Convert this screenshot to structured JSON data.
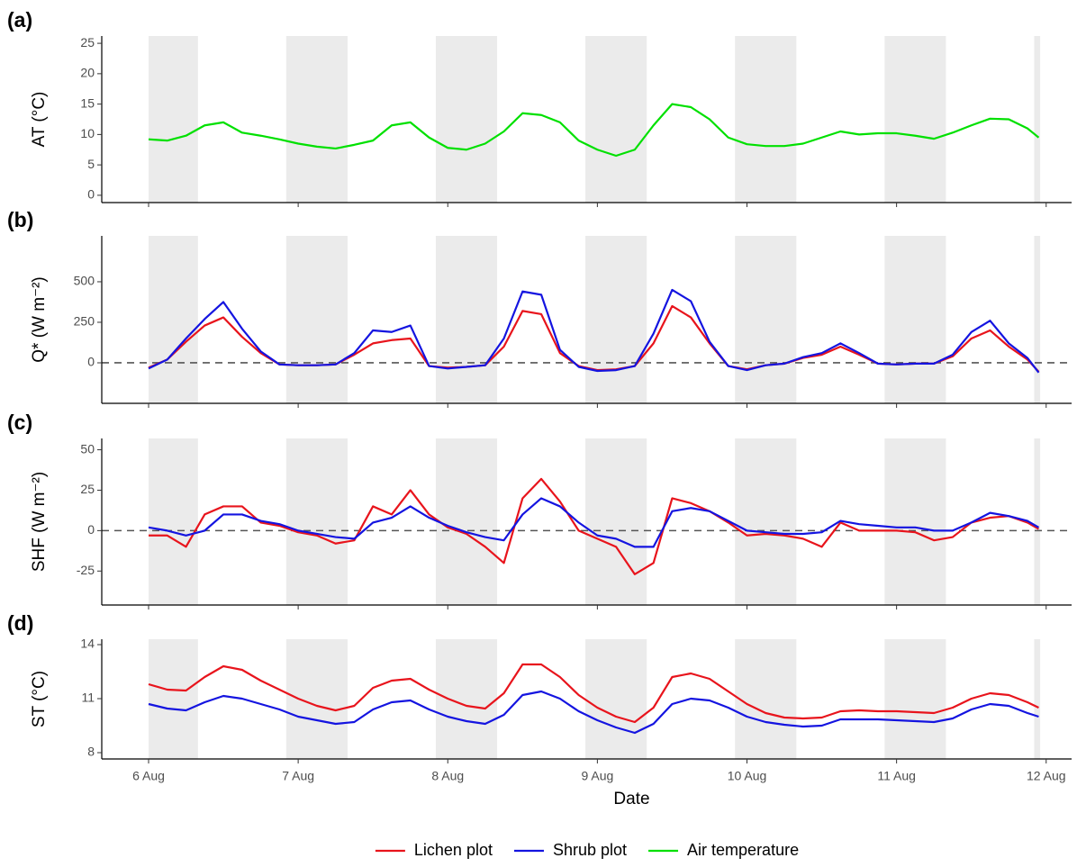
{
  "chart_data": [
    {
      "type": "line",
      "panel_label": "(a)",
      "y_label": "AT (°C)",
      "x": [
        6,
        6.125,
        6.25,
        6.375,
        6.5,
        6.625,
        6.75,
        6.875,
        7,
        7.125,
        7.25,
        7.375,
        7.5,
        7.625,
        7.75,
        7.875,
        8,
        8.125,
        8.25,
        8.375,
        8.5,
        8.625,
        8.75,
        8.875,
        9,
        9.125,
        9.25,
        9.375,
        9.5,
        9.625,
        9.75,
        9.875,
        10,
        10.125,
        10.25,
        10.375,
        10.5,
        10.625,
        10.75,
        10.875,
        11,
        11.125,
        11.25,
        11.375,
        11.5,
        11.625,
        11.75,
        11.875,
        11.95
      ],
      "series": [
        {
          "name": "Air temperature",
          "color": "#00e000",
          "values": [
            9.2,
            9,
            9.8,
            11.5,
            12,
            10.3,
            9.8,
            9.2,
            8.5,
            8,
            7.7,
            8.3,
            9,
            11.5,
            12,
            9.5,
            7.8,
            7.5,
            8.5,
            10.5,
            13.5,
            13.2,
            12,
            9,
            7.5,
            6.5,
            7.5,
            11.5,
            15,
            14.5,
            12.5,
            9.5,
            8.4,
            8.1,
            8.1,
            8.5,
            9.5,
            10.5,
            10,
            10.2,
            10.2,
            9.8,
            9.3,
            10.3,
            11.5,
            12.6,
            12.5,
            11,
            9.5
          ]
        }
      ],
      "xlim": [
        5.687,
        12.17
      ],
      "xticks": [
        6,
        7,
        8,
        9,
        10,
        11,
        12
      ],
      "ylim": [
        -1.2,
        26.2
      ],
      "yticks": [
        0,
        5,
        10,
        15,
        20,
        25
      ],
      "shading": [
        [
          6,
          6.33
        ],
        [
          6.92,
          7.33
        ],
        [
          7.92,
          8.33
        ],
        [
          8.92,
          9.33
        ],
        [
          9.92,
          10.33
        ],
        [
          10.92,
          11.33
        ],
        [
          11.92,
          11.96
        ]
      ]
    },
    {
      "type": "line",
      "panel_label": "(b)",
      "y_label": "Q* (W m⁻²)",
      "x": [
        6,
        6.125,
        6.25,
        6.375,
        6.5,
        6.625,
        6.75,
        6.875,
        7,
        7.125,
        7.25,
        7.375,
        7.5,
        7.625,
        7.75,
        7.875,
        8,
        8.125,
        8.25,
        8.375,
        8.5,
        8.625,
        8.75,
        8.875,
        9,
        9.125,
        9.25,
        9.375,
        9.5,
        9.625,
        9.75,
        9.875,
        10,
        10.125,
        10.25,
        10.375,
        10.5,
        10.625,
        10.75,
        10.875,
        11,
        11.125,
        11.25,
        11.375,
        11.5,
        11.625,
        11.75,
        11.875,
        11.95
      ],
      "series": [
        {
          "name": "Lichen plot",
          "color": "#e8141c",
          "values": [
            -30,
            20,
            130,
            230,
            280,
            160,
            60,
            -10,
            -15,
            -15,
            -10,
            50,
            120,
            140,
            150,
            -20,
            -30,
            -25,
            -15,
            100,
            320,
            300,
            60,
            -20,
            -45,
            -40,
            -20,
            120,
            350,
            280,
            120,
            -20,
            -40,
            -15,
            -5,
            30,
            50,
            100,
            50,
            -5,
            -10,
            -5,
            -5,
            40,
            150,
            200,
            100,
            20,
            -55
          ]
        },
        {
          "name": "Shrub plot",
          "color": "#1414e0",
          "values": [
            -35,
            20,
            150,
            270,
            375,
            210,
            70,
            -10,
            -15,
            -15,
            -10,
            60,
            200,
            190,
            230,
            -20,
            -35,
            -25,
            -15,
            150,
            440,
            420,
            80,
            -25,
            -50,
            -45,
            -20,
            180,
            450,
            380,
            130,
            -20,
            -45,
            -15,
            -5,
            35,
            60,
            120,
            60,
            -5,
            -10,
            -5,
            -5,
            50,
            190,
            260,
            120,
            30,
            -60
          ]
        }
      ],
      "xlim": [
        5.687,
        12.17
      ],
      "xticks": [
        6,
        7,
        8,
        9,
        10,
        11,
        12
      ],
      "ylim": [
        -250,
        783
      ],
      "yticks": [
        0,
        250,
        500
      ],
      "hline": 0,
      "shading": [
        [
          6,
          6.33
        ],
        [
          6.92,
          7.33
        ],
        [
          7.92,
          8.33
        ],
        [
          8.92,
          9.33
        ],
        [
          9.92,
          10.33
        ],
        [
          10.92,
          11.33
        ],
        [
          11.92,
          11.96
        ]
      ]
    },
    {
      "type": "line",
      "panel_label": "(c)",
      "y_label": "SHF (W m⁻²)",
      "x": [
        6,
        6.125,
        6.25,
        6.375,
        6.5,
        6.625,
        6.75,
        6.875,
        7,
        7.125,
        7.25,
        7.375,
        7.5,
        7.625,
        7.75,
        7.875,
        8,
        8.125,
        8.25,
        8.375,
        8.5,
        8.625,
        8.75,
        8.875,
        9,
        9.125,
        9.25,
        9.375,
        9.5,
        9.625,
        9.75,
        9.875,
        10,
        10.125,
        10.25,
        10.375,
        10.5,
        10.625,
        10.75,
        10.875,
        11,
        11.125,
        11.25,
        11.375,
        11.5,
        11.625,
        11.75,
        11.875,
        11.95
      ],
      "series": [
        {
          "name": "Lichen plot",
          "color": "#e8141c",
          "values": [
            -3,
            -3,
            -10,
            10,
            15,
            15,
            5,
            3,
            -1,
            -3,
            -8,
            -6,
            15,
            10,
            25,
            10,
            2,
            -2,
            -10,
            -20,
            20,
            32,
            18,
            0,
            -5,
            -10,
            -27,
            -20,
            20,
            17,
            12,
            5,
            -3,
            -2,
            -3,
            -5,
            -10,
            5,
            0,
            0,
            0,
            -1,
            -6,
            -4,
            5,
            8,
            9,
            5,
            1
          ]
        },
        {
          "name": "Shrub plot",
          "color": "#1414e0",
          "values": [
            2,
            0,
            -3,
            0,
            10,
            10,
            6,
            4,
            0,
            -2,
            -4,
            -5,
            5,
            8,
            15,
            8,
            3,
            -1,
            -4,
            -6,
            10,
            20,
            15,
            5,
            -3,
            -5,
            -10,
            -10,
            12,
            14,
            12,
            6,
            0,
            -1,
            -2,
            -2,
            -1,
            6,
            4,
            3,
            2,
            2,
            0,
            0,
            5,
            11,
            9,
            6,
            2
          ]
        }
      ],
      "xlim": [
        5.687,
        12.17
      ],
      "xticks": [
        6,
        7,
        8,
        9,
        10,
        11,
        12
      ],
      "ylim": [
        -46,
        57
      ],
      "yticks": [
        -25,
        0,
        25,
        50
      ],
      "hline": 0,
      "shading": [
        [
          6,
          6.33
        ],
        [
          6.92,
          7.33
        ],
        [
          7.92,
          8.33
        ],
        [
          8.92,
          9.33
        ],
        [
          9.92,
          10.33
        ],
        [
          10.92,
          11.33
        ],
        [
          11.92,
          11.96
        ]
      ]
    },
    {
      "type": "line",
      "panel_label": "(d)",
      "y_label": "ST (°C)",
      "x_label": "Date",
      "x": [
        6,
        6.125,
        6.25,
        6.375,
        6.5,
        6.625,
        6.75,
        6.875,
        7,
        7.125,
        7.25,
        7.375,
        7.5,
        7.625,
        7.75,
        7.875,
        8,
        8.125,
        8.25,
        8.375,
        8.5,
        8.625,
        8.75,
        8.875,
        9,
        9.125,
        9.25,
        9.375,
        9.5,
        9.625,
        9.75,
        9.875,
        10,
        10.125,
        10.25,
        10.375,
        10.5,
        10.625,
        10.75,
        10.875,
        11,
        11.125,
        11.25,
        11.375,
        11.5,
        11.625,
        11.75,
        11.875,
        11.95
      ],
      "series": [
        {
          "name": "Lichen plot",
          "color": "#e8141c",
          "values": [
            11.8,
            11.5,
            11.45,
            12.2,
            12.8,
            12.6,
            12,
            11.5,
            11,
            10.6,
            10.35,
            10.6,
            11.6,
            12,
            12.1,
            11.5,
            11,
            10.6,
            10.45,
            11.3,
            12.9,
            12.9,
            12.2,
            11.2,
            10.5,
            10,
            9.7,
            10.5,
            12.2,
            12.4,
            12.1,
            11.4,
            10.7,
            10.2,
            9.95,
            9.9,
            9.95,
            10.3,
            10.35,
            10.3,
            10.3,
            10.25,
            10.2,
            10.5,
            11,
            11.3,
            11.2,
            10.8,
            10.5
          ]
        },
        {
          "name": "Shrub plot",
          "color": "#1414e0",
          "values": [
            10.7,
            10.45,
            10.35,
            10.8,
            11.15,
            11,
            10.7,
            10.4,
            10,
            9.8,
            9.6,
            9.7,
            10.4,
            10.8,
            10.9,
            10.4,
            10,
            9.75,
            9.6,
            10.1,
            11.2,
            11.4,
            11,
            10.3,
            9.8,
            9.4,
            9.1,
            9.6,
            10.7,
            11,
            10.9,
            10.5,
            10,
            9.7,
            9.55,
            9.45,
            9.5,
            9.85,
            9.85,
            9.85,
            9.8,
            9.75,
            9.7,
            9.9,
            10.4,
            10.7,
            10.6,
            10.2,
            10
          ]
        }
      ],
      "xlim": [
        5.687,
        12.17
      ],
      "xticks": [
        {
          "value": 6,
          "label": "6 Aug"
        },
        {
          "value": 7,
          "label": "7 Aug"
        },
        {
          "value": 8,
          "label": "8 Aug"
        },
        {
          "value": 9,
          "label": "9 Aug"
        },
        {
          "value": 10,
          "label": "10 Aug"
        },
        {
          "value": 11,
          "label": "11 Aug"
        },
        {
          "value": 12,
          "label": "12 Aug"
        }
      ],
      "ylim": [
        7.65,
        14.3
      ],
      "yticks": [
        8,
        11,
        14
      ],
      "shading": [
        [
          6,
          6.33
        ],
        [
          6.92,
          7.33
        ],
        [
          7.92,
          8.33
        ],
        [
          8.92,
          9.33
        ],
        [
          9.92,
          10.33
        ],
        [
          10.92,
          11.33
        ],
        [
          11.92,
          11.96
        ]
      ]
    }
  ]
}
